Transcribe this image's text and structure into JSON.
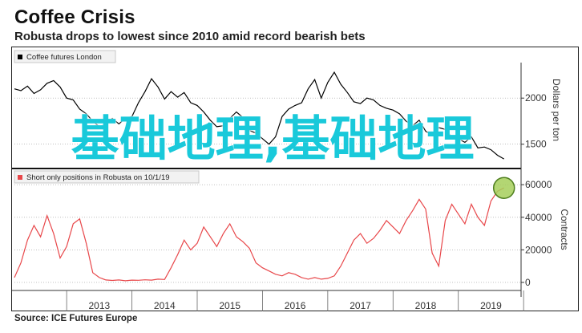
{
  "title": "Coffee Crisis",
  "subtitle": "Robusta drops to lowest since 2010 amid record bearish bets",
  "source": "Source: ICE Futures Europe",
  "watermark": "基础地理,基础地理",
  "colors": {
    "price": "#000000",
    "positions": "#e8474a",
    "highlight_fill": "#a6cf5a",
    "highlight_stroke": "#4f7f1f",
    "watermark": "#19c9da"
  },
  "chart_data": [
    {
      "type": "line",
      "legend": "Coffee futures London",
      "ylabel": "Dollars per ton",
      "yticks": [
        1500,
        2000
      ],
      "ylim": [
        1280,
        2350
      ],
      "xlim": [
        2012.2,
        2019.9
      ],
      "x": [
        2012.2,
        2012.3,
        2012.4,
        2012.5,
        2012.6,
        2012.7,
        2012.8,
        2012.9,
        2013.0,
        2013.1,
        2013.2,
        2013.3,
        2013.4,
        2013.5,
        2013.6,
        2013.7,
        2013.8,
        2013.9,
        2014.0,
        2014.1,
        2014.2,
        2014.3,
        2014.4,
        2014.5,
        2014.6,
        2014.7,
        2014.8,
        2014.9,
        2015.0,
        2015.1,
        2015.2,
        2015.3,
        2015.4,
        2015.5,
        2015.6,
        2015.7,
        2015.8,
        2015.9,
        2016.0,
        2016.1,
        2016.2,
        2016.3,
        2016.4,
        2016.5,
        2016.6,
        2016.7,
        2016.8,
        2016.9,
        2017.0,
        2017.1,
        2017.2,
        2017.3,
        2017.4,
        2017.5,
        2017.6,
        2017.7,
        2017.8,
        2017.9,
        2018.0,
        2018.1,
        2018.2,
        2018.3,
        2018.4,
        2018.5,
        2018.6,
        2018.7,
        2018.8,
        2018.9,
        2019.0,
        2019.1,
        2019.2,
        2019.3,
        2019.4,
        2019.5,
        2019.6,
        2019.7
      ],
      "series": [
        {
          "name": "Coffee futures London",
          "values": [
            2100,
            2080,
            2130,
            2050,
            2090,
            2160,
            2190,
            2120,
            2000,
            1980,
            1880,
            1830,
            1750,
            1690,
            1720,
            1780,
            1720,
            1780,
            1800,
            1950,
            2070,
            2210,
            2120,
            1990,
            2070,
            2010,
            2060,
            1950,
            1920,
            1850,
            1760,
            1690,
            1700,
            1780,
            1850,
            1790,
            1650,
            1620,
            1560,
            1500,
            1580,
            1800,
            1880,
            1920,
            1950,
            2100,
            2200,
            2000,
            2170,
            2280,
            2150,
            2060,
            1960,
            1940,
            2000,
            1980,
            1920,
            1890,
            1870,
            1830,
            1750,
            1700,
            1760,
            1640,
            1600,
            1680,
            1660,
            1580,
            1560,
            1520,
            1580,
            1460,
            1470,
            1440,
            1380,
            1340
          ]
        }
      ]
    },
    {
      "type": "line",
      "legend": "Short only positions in Robusta on 10/1/19",
      "ylabel": "Contracts",
      "yticks": [
        0,
        20000,
        40000,
        60000
      ],
      "ylim": [
        -2000,
        66000
      ],
      "xlim": [
        2012.2,
        2019.9
      ],
      "xticks": [
        "2013",
        "2014",
        "2015",
        "2016",
        "2017",
        "2018",
        "2019"
      ],
      "x": [
        2012.2,
        2012.3,
        2012.4,
        2012.5,
        2012.6,
        2012.7,
        2012.8,
        2012.9,
        2013.0,
        2013.1,
        2013.2,
        2013.3,
        2013.4,
        2013.5,
        2013.6,
        2013.7,
        2013.8,
        2013.9,
        2014.0,
        2014.1,
        2014.2,
        2014.3,
        2014.4,
        2014.5,
        2014.6,
        2014.7,
        2014.8,
        2014.9,
        2015.0,
        2015.1,
        2015.2,
        2015.3,
        2015.4,
        2015.5,
        2015.6,
        2015.7,
        2015.8,
        2015.9,
        2016.0,
        2016.1,
        2016.2,
        2016.3,
        2016.4,
        2016.5,
        2016.6,
        2016.7,
        2016.8,
        2016.9,
        2017.0,
        2017.1,
        2017.2,
        2017.3,
        2017.4,
        2017.5,
        2017.6,
        2017.7,
        2017.8,
        2017.9,
        2018.0,
        2018.1,
        2018.2,
        2018.3,
        2018.4,
        2018.5,
        2018.6,
        2018.7,
        2018.8,
        2018.9,
        2019.0,
        2019.1,
        2019.2,
        2019.3,
        2019.4,
        2019.5,
        2019.6,
        2019.7
      ],
      "series": [
        {
          "name": "Short only positions in Robusta",
          "values": [
            3000,
            12000,
            26000,
            35000,
            28000,
            41000,
            30000,
            15000,
            22000,
            36000,
            39000,
            24000,
            6000,
            3000,
            1500,
            1200,
            1500,
            1000,
            1400,
            1300,
            1600,
            1400,
            2000,
            1800,
            9000,
            17000,
            26000,
            20000,
            24000,
            34000,
            28000,
            22000,
            30000,
            36000,
            28000,
            25000,
            21000,
            12000,
            9000,
            7000,
            5000,
            4000,
            6000,
            5000,
            3000,
            2000,
            3000,
            2000,
            2500,
            4000,
            10000,
            18000,
            26000,
            30000,
            24000,
            27000,
            32000,
            38000,
            34000,
            30000,
            38000,
            44000,
            51000,
            45000,
            18000,
            10000,
            38000,
            48000,
            42000,
            36000,
            48000,
            40000,
            35000,
            50000,
            56000,
            58000
          ]
        }
      ],
      "highlight": {
        "x": 2019.7,
        "y": 58000
      }
    }
  ]
}
